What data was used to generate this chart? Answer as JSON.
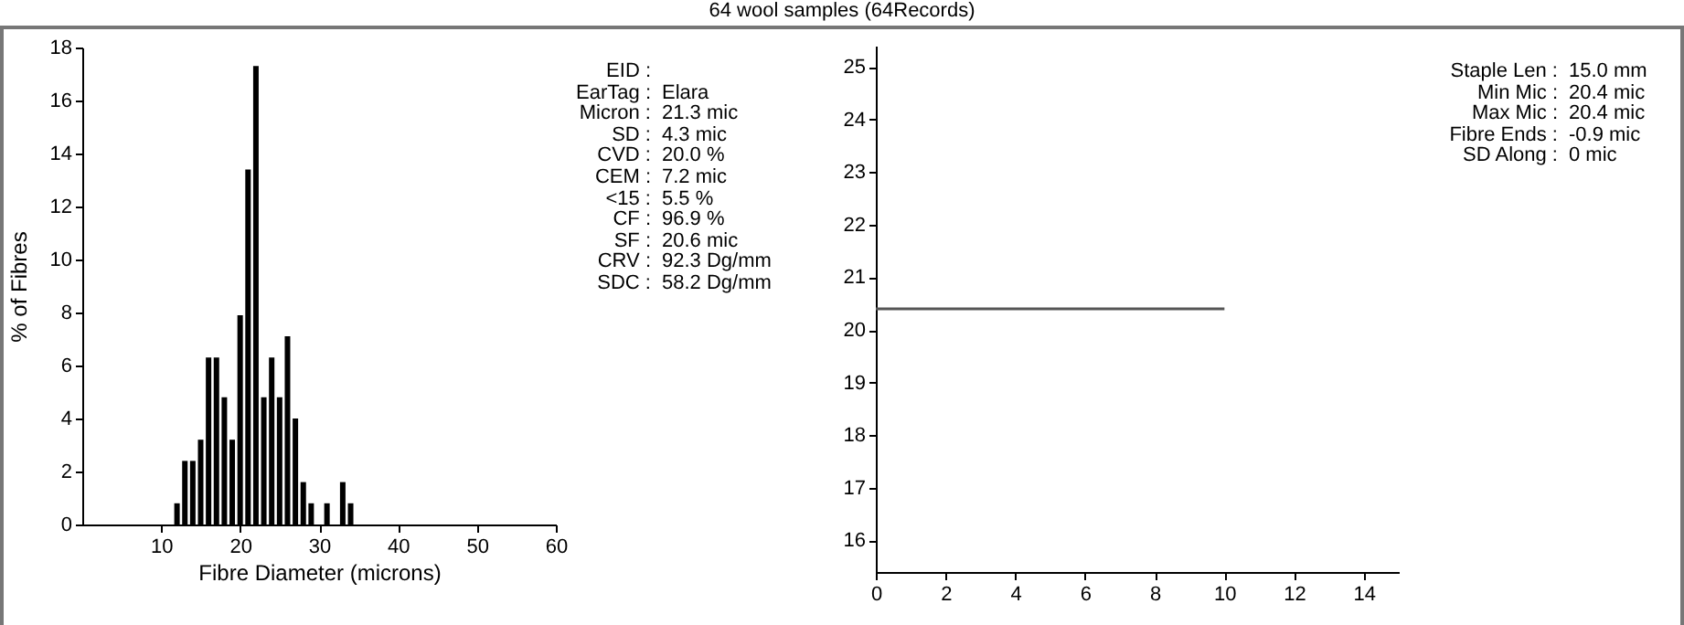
{
  "chart_data": [
    {
      "type": "other",
      "title": "64 wool samples (64Records)"
    },
    {
      "type": "bar",
      "xlabel": "Fibre Diameter (microns)",
      "ylabel": "% of Fibres",
      "x": [
        12,
        13,
        14,
        15,
        16,
        17,
        18,
        19,
        20,
        21,
        22,
        23,
        24,
        25,
        26,
        27,
        28,
        29,
        30,
        31,
        32,
        33,
        34
      ],
      "values": [
        0.8,
        2.4,
        2.4,
        3.2,
        6.3,
        6.3,
        4.8,
        3.2,
        7.9,
        13.4,
        17.3,
        4.8,
        6.3,
        4.8,
        7.1,
        4.0,
        1.6,
        0.8,
        0,
        0.8,
        0,
        1.6,
        0.8
      ],
      "color": "#000000",
      "xlim": [
        0,
        60
      ],
      "xticks": [
        10,
        20,
        30,
        40,
        50,
        60
      ],
      "ylim": [
        0,
        18
      ],
      "yticks": [
        0,
        2,
        4,
        6,
        8,
        10,
        12,
        14,
        16,
        18
      ]
    },
    {
      "type": "other",
      "annotations": [
        "EID :",
        "EarTag : Elara",
        "Micron : 21.3 mic",
        "SD : 4.3 mic",
        "CVD : 20.0 %",
        "CEM : 7.2 mic",
        "<15 : 5.5 %",
        "CF : 96.9 %",
        "SF : 20.6 mic",
        "CRV : 92.3 Dg/mm",
        "SDC : 58.2 Dg/mm"
      ]
    },
    {
      "type": "line",
      "x": [
        0,
        5,
        10
      ],
      "values": [
        20.4,
        20.4,
        20.4
      ],
      "color": "#555555",
      "xlim": [
        0,
        15
      ],
      "xticks": [
        0,
        2,
        4,
        6,
        8,
        10,
        12,
        14
      ],
      "ylim": [
        15.4,
        25.4
      ],
      "yticks": [
        16,
        17,
        18,
        19,
        20,
        21,
        22,
        23,
        24,
        25
      ]
    },
    {
      "type": "other",
      "annotations": [
        "Staple Len : 15.0 mm",
        "Min Mic : 20.4 mic",
        "Max Mic : 20.4 mic",
        "Fibre Ends : -0.9 mic",
        "SD Along : 0 mic"
      ]
    }
  ]
}
